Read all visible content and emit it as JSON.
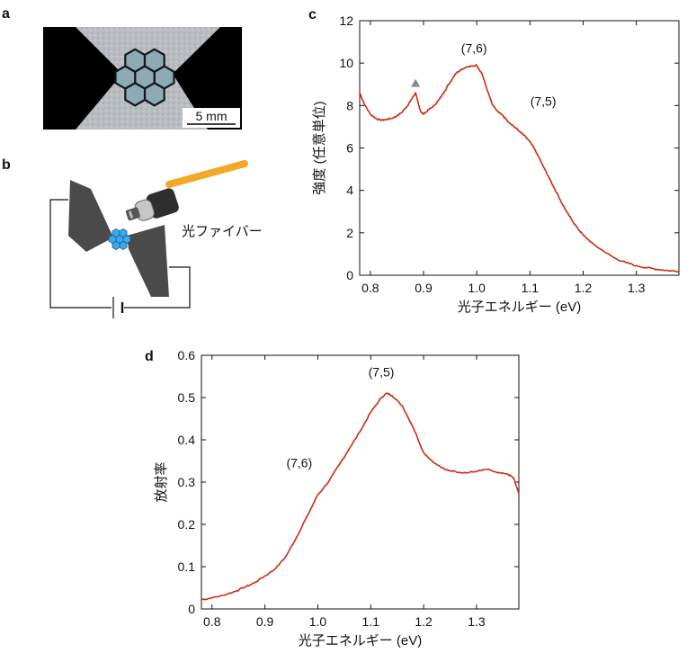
{
  "panels": {
    "a": {
      "letter": "a",
      "scale_bar_label": "5 mm",
      "colors": {
        "background": "#000000",
        "film": "#b9bcc0",
        "hexagon_fill": "#8eaab4",
        "hexagon_edge": "#10181c"
      }
    },
    "b": {
      "letter": "b",
      "fiber_label": "光ファイバー",
      "colors": {
        "electrode": "#4a4a4a",
        "fiber": "#f4a82a",
        "sample": "#3ba8ee",
        "probe_metal": "#bdbdbd"
      }
    },
    "c": {
      "letter": "c"
    },
    "d": {
      "letter": "d"
    }
  },
  "chart_data": [
    {
      "panel": "c",
      "type": "line",
      "title": "",
      "xlabel": "光子エネルギー (eV)",
      "ylabel": "強度 (任意単位)",
      "xlim": [
        0.78,
        1.38
      ],
      "ylim": [
        0,
        12
      ],
      "xticks": [
        0.8,
        0.9,
        1.0,
        1.1,
        1.2,
        1.3
      ],
      "xtick_labels": [
        "0.8",
        "0.9",
        "1.0",
        "1.1",
        "1.2",
        "1.3"
      ],
      "yticks": [
        0,
        2,
        4,
        6,
        8,
        10,
        12
      ],
      "ytick_labels": [
        "0",
        "2",
        "4",
        "6",
        "8",
        "10",
        "12"
      ],
      "grid": false,
      "line_color": "#cc2a12",
      "series": [
        {
          "x": [
            0.78,
            0.79,
            0.8,
            0.81,
            0.82,
            0.83,
            0.84,
            0.85,
            0.86,
            0.87,
            0.875,
            0.88,
            0.885,
            0.89,
            0.895,
            0.9,
            0.91,
            0.92,
            0.93,
            0.94,
            0.95,
            0.96,
            0.97,
            0.98,
            0.99,
            1.0,
            1.01,
            1.02,
            1.03,
            1.04,
            1.05,
            1.06,
            1.07,
            1.08,
            1.09,
            1.1,
            1.11,
            1.12,
            1.13,
            1.14,
            1.15,
            1.16,
            1.17,
            1.18,
            1.19,
            1.2,
            1.22,
            1.24,
            1.26,
            1.28,
            1.3,
            1.32,
            1.34,
            1.36,
            1.38
          ],
          "y": [
            8.6,
            8.0,
            7.6,
            7.4,
            7.3,
            7.35,
            7.4,
            7.5,
            7.7,
            8.0,
            8.2,
            8.4,
            8.6,
            8.1,
            7.7,
            7.6,
            7.8,
            8.0,
            8.3,
            8.7,
            9.1,
            9.5,
            9.7,
            9.8,
            9.85,
            9.9,
            9.5,
            8.7,
            8.0,
            7.7,
            7.5,
            7.2,
            7.0,
            6.8,
            6.6,
            6.3,
            5.9,
            5.4,
            4.9,
            4.4,
            3.9,
            3.4,
            2.95,
            2.55,
            2.2,
            1.9,
            1.45,
            1.1,
            0.8,
            0.6,
            0.45,
            0.35,
            0.28,
            0.22,
            0.18
          ]
        }
      ],
      "annotations": [
        {
          "text": "(7,6)",
          "x": 0.995,
          "y": 10.5
        },
        {
          "text": "(7,5)",
          "x": 1.125,
          "y": 8.0
        }
      ],
      "marker": {
        "shape": "triangle",
        "x": 0.885,
        "y": 9.05,
        "color": "#888888"
      }
    },
    {
      "panel": "d",
      "type": "line",
      "title": "",
      "xlabel": "光子エネルギー (eV)",
      "ylabel": "放射率",
      "xlim": [
        0.78,
        1.38
      ],
      "ylim": [
        0,
        0.6
      ],
      "xticks": [
        0.8,
        0.9,
        1.0,
        1.1,
        1.2,
        1.3
      ],
      "xtick_labels": [
        "0.8",
        "0.9",
        "1.0",
        "1.1",
        "1.2",
        "1.3"
      ],
      "yticks": [
        0,
        0.1,
        0.2,
        0.3,
        0.4,
        0.5,
        0.6
      ],
      "ytick_labels": [
        "0",
        "0.1",
        "0.2",
        "0.3",
        "0.4",
        "0.5",
        "0.6"
      ],
      "grid": false,
      "line_color": "#cc2a12",
      "series": [
        {
          "x": [
            0.78,
            0.8,
            0.82,
            0.84,
            0.86,
            0.88,
            0.9,
            0.92,
            0.94,
            0.96,
            0.98,
            1.0,
            1.02,
            1.04,
            1.06,
            1.08,
            1.1,
            1.12,
            1.13,
            1.14,
            1.16,
            1.18,
            1.2,
            1.22,
            1.24,
            1.26,
            1.28,
            1.3,
            1.32,
            1.34,
            1.36,
            1.37,
            1.38
          ],
          "y": [
            0.022,
            0.026,
            0.032,
            0.04,
            0.05,
            0.062,
            0.078,
            0.095,
            0.125,
            0.17,
            0.22,
            0.27,
            0.3,
            0.34,
            0.38,
            0.42,
            0.465,
            0.5,
            0.51,
            0.505,
            0.48,
            0.43,
            0.37,
            0.345,
            0.33,
            0.325,
            0.322,
            0.325,
            0.33,
            0.322,
            0.318,
            0.31,
            0.272
          ]
        }
      ],
      "annotations": [
        {
          "text": "(7,5)",
          "x": 1.12,
          "y": 0.55
        },
        {
          "text": "(7,6)",
          "x": 0.965,
          "y": 0.335
        }
      ]
    }
  ]
}
